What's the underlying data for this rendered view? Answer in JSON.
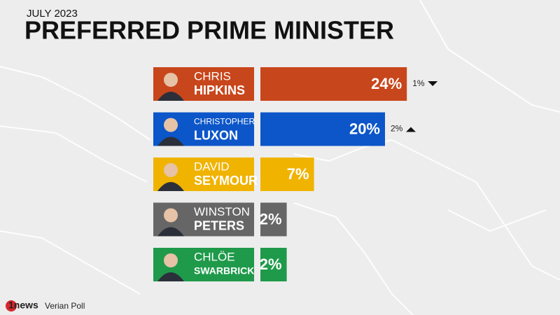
{
  "chart_data": {
    "type": "bar",
    "subtitle": "JULY 2023",
    "title": "PREFERRED PRIME MINISTER",
    "first_names": [
      "CHRIS",
      "CHRISTOPHER",
      "DAVID",
      "WINSTON",
      "CHLÖE"
    ],
    "categories": [
      "HIPKINS",
      "LUXON",
      "SEYMOUR",
      "PETERS",
      "SWARBRICK"
    ],
    "values": [
      24,
      20,
      7,
      2,
      2
    ],
    "value_labels": [
      "24%",
      "20%",
      "7%",
      "2%",
      "2%"
    ],
    "colors": [
      "#c8461b",
      "#0c56c9",
      "#f0b300",
      "#666666",
      "#1e9a4a"
    ],
    "changes": [
      {
        "value": 1,
        "label": "1%",
        "direction": "down"
      },
      {
        "value": 2,
        "label": "2%",
        "direction": "up"
      },
      null,
      null,
      null
    ],
    "brand": "1news",
    "source": "Verian Poll"
  }
}
